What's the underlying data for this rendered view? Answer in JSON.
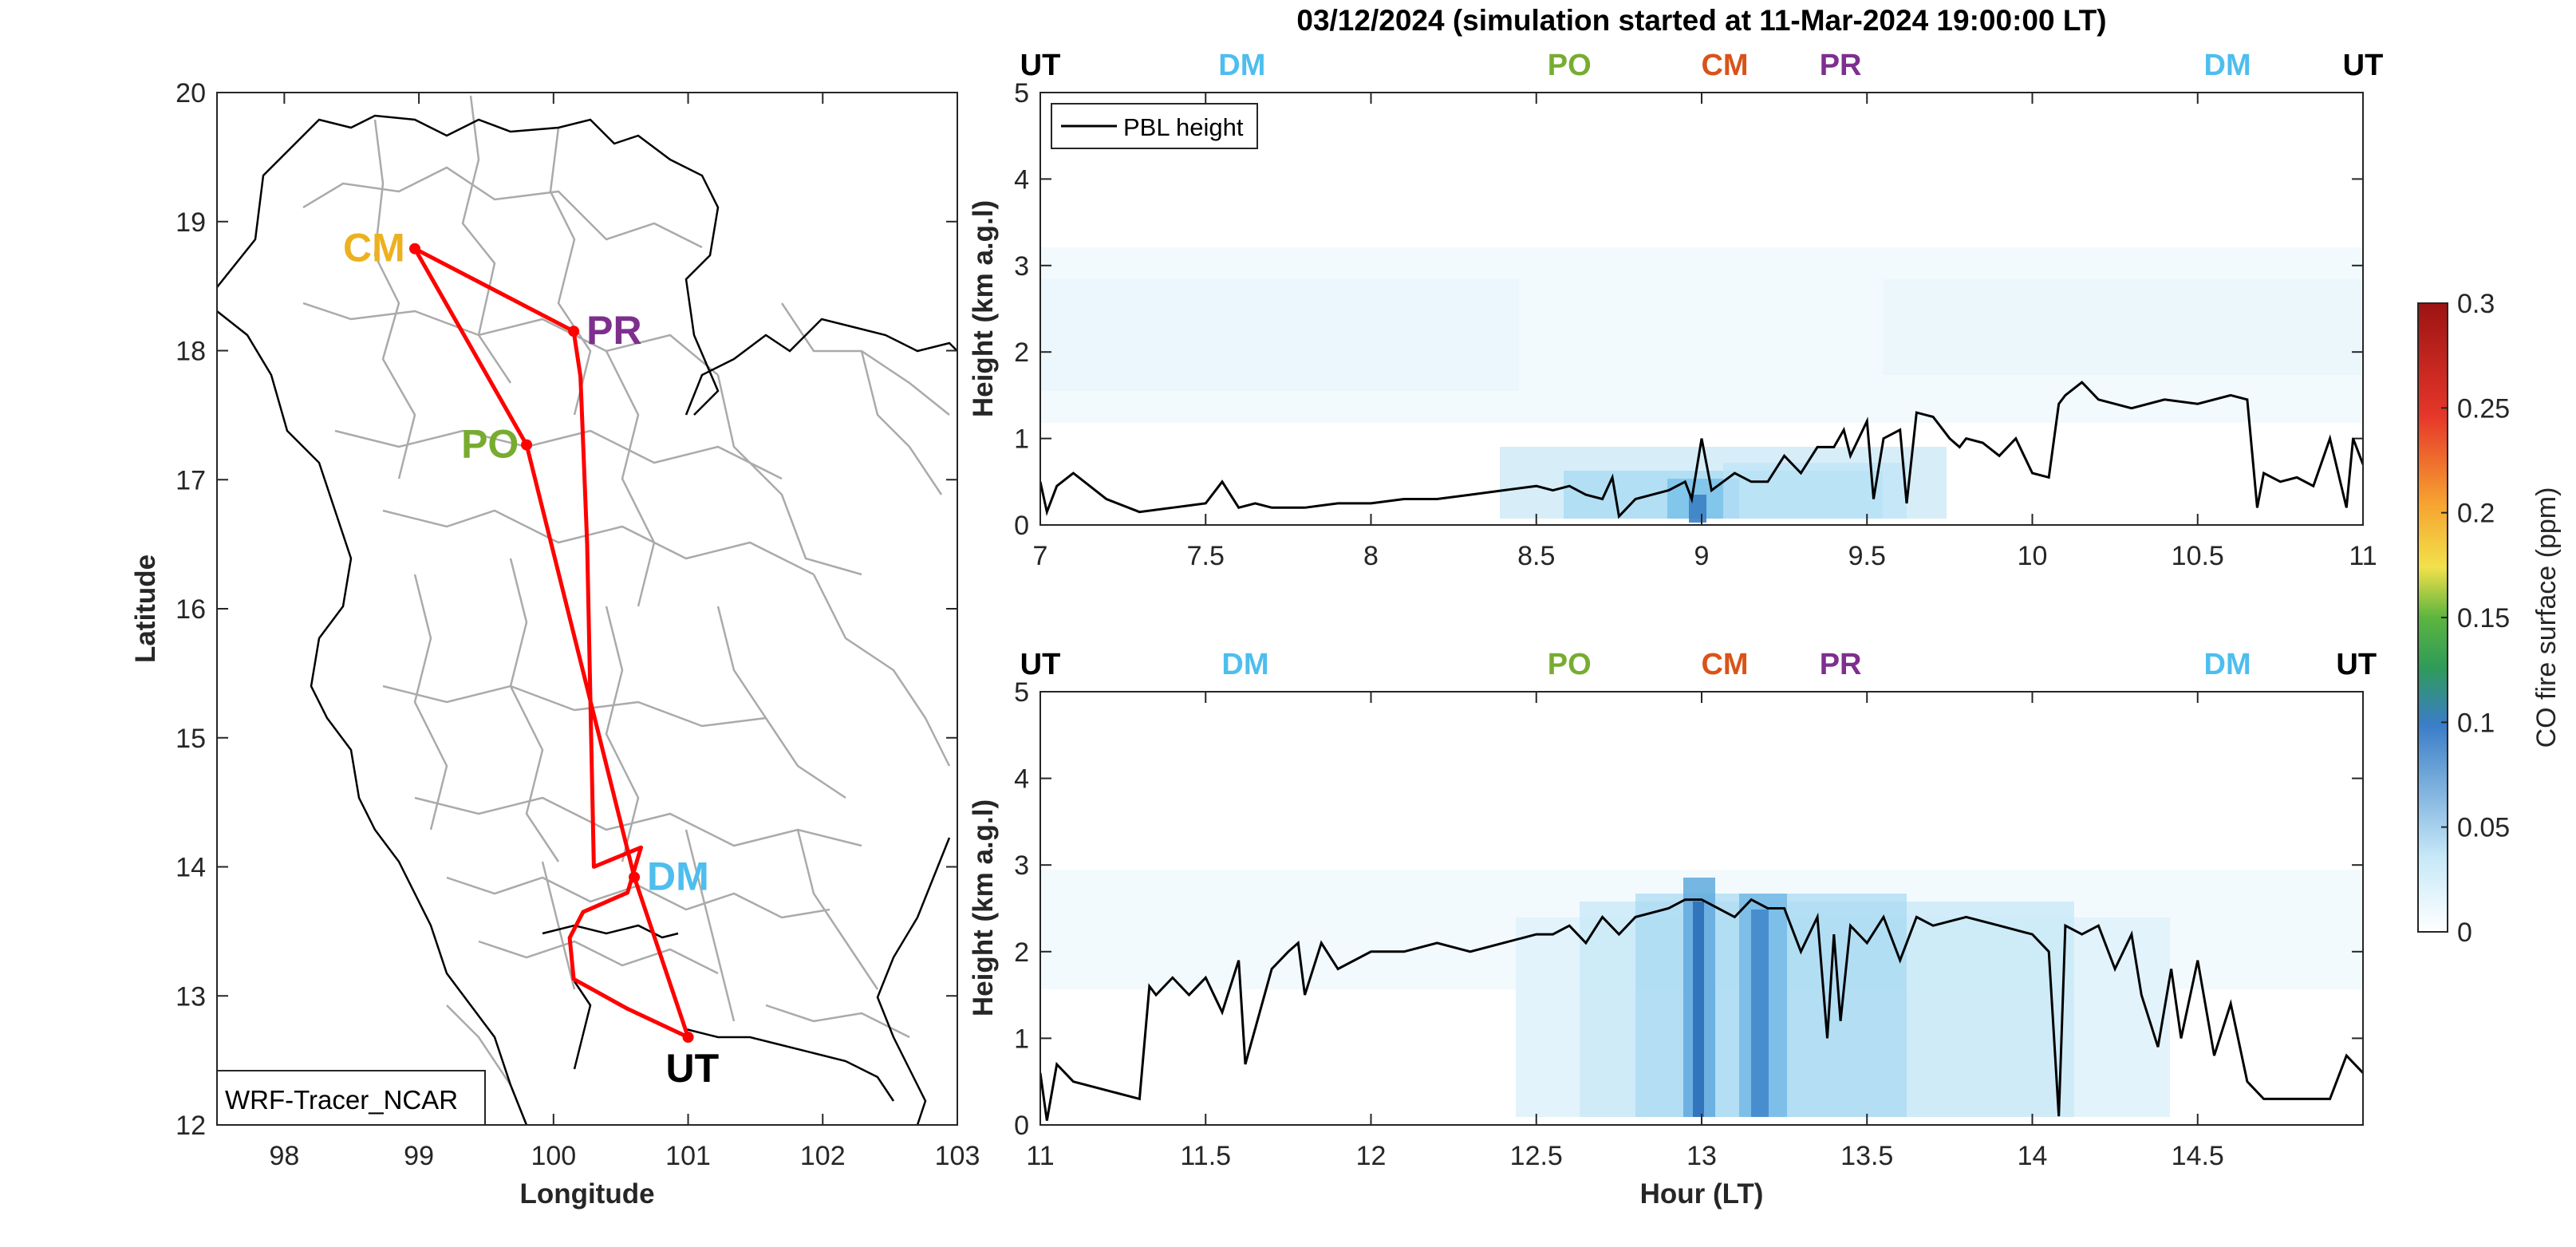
{
  "title": "03/12/2024 (simulation started at 11-Mar-2024 19:00:00 LT)",
  "colors": {
    "UT": "#000000",
    "DM": "#4DBEEE",
    "PO": "#77AC30",
    "CM": "#D95319",
    "PR": "#7E2F8E",
    "CM_map": "#EDB120",
    "track": "#FF0000",
    "pbl": "#000000",
    "border": "#000000",
    "province": "#AAAAAA"
  },
  "map": {
    "xlabel": "Longitude",
    "ylabel": "Latitude",
    "xlim": [
      97.5,
      103
    ],
    "ylim": [
      12,
      20
    ],
    "xticks": [
      98,
      99,
      100,
      101,
      102,
      103
    ],
    "yticks": [
      12,
      13,
      14,
      15,
      16,
      17,
      18,
      19,
      20
    ],
    "model_label": "WRF-Tracer_NCAR",
    "stations": [
      {
        "code": "CM",
        "lon": 98.97,
        "lat": 18.79
      },
      {
        "code": "PR",
        "lon": 100.15,
        "lat": 18.15
      },
      {
        "code": "PO",
        "lon": 99.8,
        "lat": 17.27
      },
      {
        "code": "DM",
        "lon": 100.6,
        "lat": 13.92
      },
      {
        "code": "UT",
        "lon": 101.0,
        "lat": 12.68
      }
    ],
    "track": [
      [
        101.0,
        12.68
      ],
      [
        100.6,
        13.92
      ],
      [
        99.8,
        17.27
      ],
      [
        98.97,
        18.79
      ],
      [
        100.15,
        18.15
      ],
      [
        100.2,
        17.8
      ],
      [
        100.25,
        16.5
      ],
      [
        100.3,
        14.0
      ],
      [
        100.65,
        14.15
      ],
      [
        100.55,
        13.8
      ],
      [
        100.22,
        13.65
      ],
      [
        100.12,
        13.45
      ],
      [
        100.15,
        13.13
      ],
      [
        100.55,
        12.9
      ],
      [
        101.0,
        12.68
      ]
    ]
  },
  "chart_data": [
    {
      "type": "heatmap",
      "xlim": [
        7,
        11
      ],
      "ylim": [
        0,
        5
      ],
      "xticks": [
        7,
        7.5,
        8,
        8.5,
        9,
        9.5,
        10,
        10.5,
        11
      ],
      "yticks": [
        0,
        1,
        2,
        3,
        4,
        5
      ],
      "ylabel": "Height (km a.g.l)",
      "xlabel": "",
      "legend": "PBL height",
      "legend_location": "top-left",
      "top_markers": [
        {
          "label": "UT",
          "x": 7.0
        },
        {
          "label": "DM",
          "x": 7.61
        },
        {
          "label": "PO",
          "x": 8.6
        },
        {
          "label": "CM",
          "x": 9.07
        },
        {
          "label": "PR",
          "x": 9.42
        },
        {
          "label": "DM",
          "x": 10.59
        },
        {
          "label": "UT",
          "x": 11.0
        }
      ],
      "pbl_height": {
        "x": [
          7.0,
          7.02,
          7.05,
          7.1,
          7.2,
          7.3,
          7.4,
          7.5,
          7.55,
          7.6,
          7.65,
          7.7,
          7.8,
          7.9,
          8.0,
          8.1,
          8.2,
          8.3,
          8.4,
          8.5,
          8.55,
          8.6,
          8.65,
          8.7,
          8.73,
          8.75,
          8.8,
          8.85,
          8.9,
          8.95,
          8.97,
          9.0,
          9.03,
          9.1,
          9.15,
          9.2,
          9.25,
          9.3,
          9.35,
          9.4,
          9.43,
          9.45,
          9.5,
          9.52,
          9.55,
          9.6,
          9.62,
          9.65,
          9.7,
          9.75,
          9.78,
          9.8,
          9.85,
          9.9,
          9.95,
          10.0,
          10.05,
          10.08,
          10.1,
          10.15,
          10.2,
          10.3,
          10.4,
          10.5,
          10.6,
          10.65,
          10.68,
          10.7,
          10.75,
          10.8,
          10.85,
          10.9,
          10.95,
          10.97,
          11.0
        ],
        "y": [
          0.5,
          0.15,
          0.45,
          0.6,
          0.3,
          0.15,
          0.2,
          0.25,
          0.5,
          0.2,
          0.25,
          0.2,
          0.2,
          0.25,
          0.25,
          0.3,
          0.3,
          0.35,
          0.4,
          0.45,
          0.4,
          0.45,
          0.35,
          0.3,
          0.55,
          0.1,
          0.3,
          0.35,
          0.4,
          0.5,
          0.3,
          1.0,
          0.4,
          0.6,
          0.5,
          0.5,
          0.8,
          0.6,
          0.9,
          0.9,
          1.1,
          0.8,
          1.2,
          0.3,
          1.0,
          1.1,
          0.25,
          1.3,
          1.25,
          1.0,
          0.9,
          1.0,
          0.95,
          0.8,
          1.0,
          0.6,
          0.55,
          1.4,
          1.5,
          1.65,
          1.45,
          1.35,
          1.45,
          1.4,
          1.5,
          1.45,
          0.2,
          0.6,
          0.5,
          0.55,
          0.45,
          1.0,
          0.2,
          1.0,
          0.7
        ]
      }
    },
    {
      "type": "heatmap",
      "xlim": [
        11,
        15
      ],
      "ylim": [
        0,
        5
      ],
      "xticks": [
        11,
        11.5,
        12,
        12.5,
        13,
        13.5,
        14,
        14.5
      ],
      "yticks": [
        0,
        1,
        2,
        3,
        4,
        5
      ],
      "ylabel": "Height (km a.g.l)",
      "xlabel": "Hour (LT)",
      "top_markers": [
        {
          "label": "UT",
          "x": 11.0
        },
        {
          "label": "DM",
          "x": 11.62
        },
        {
          "label": "PO",
          "x": 12.6
        },
        {
          "label": "CM",
          "x": 13.07
        },
        {
          "label": "PR",
          "x": 13.42
        },
        {
          "label": "DM",
          "x": 14.59
        },
        {
          "label": "UT",
          "x": 14.98
        }
      ],
      "pbl_height": {
        "x": [
          11.0,
          11.02,
          11.05,
          11.1,
          11.2,
          11.3,
          11.33,
          11.35,
          11.4,
          11.45,
          11.5,
          11.55,
          11.6,
          11.62,
          11.7,
          11.75,
          11.78,
          11.8,
          11.85,
          11.9,
          12.0,
          12.1,
          12.2,
          12.3,
          12.4,
          12.5,
          12.55,
          12.6,
          12.65,
          12.7,
          12.75,
          12.8,
          12.9,
          12.95,
          13.0,
          13.05,
          13.1,
          13.15,
          13.2,
          13.25,
          13.3,
          13.35,
          13.38,
          13.4,
          13.42,
          13.45,
          13.5,
          13.55,
          13.6,
          13.65,
          13.7,
          13.8,
          13.9,
          14.0,
          14.05,
          14.08,
          14.1,
          14.15,
          14.2,
          14.25,
          14.3,
          14.33,
          14.38,
          14.42,
          14.45,
          14.5,
          14.55,
          14.6,
          14.65,
          14.7,
          14.8,
          14.9,
          14.95,
          15.0
        ],
        "y": [
          0.6,
          0.05,
          0.7,
          0.5,
          0.4,
          0.3,
          1.6,
          1.5,
          1.7,
          1.5,
          1.7,
          1.3,
          1.9,
          0.7,
          1.8,
          2.0,
          2.1,
          1.5,
          2.1,
          1.8,
          2.0,
          2.0,
          2.1,
          2.0,
          2.1,
          2.2,
          2.2,
          2.3,
          2.1,
          2.4,
          2.2,
          2.4,
          2.5,
          2.6,
          2.6,
          2.5,
          2.4,
          2.6,
          2.5,
          2.5,
          2.0,
          2.4,
          1.0,
          2.2,
          1.2,
          2.3,
          2.1,
          2.4,
          1.9,
          2.4,
          2.3,
          2.4,
          2.3,
          2.2,
          2.0,
          0.1,
          2.3,
          2.2,
          2.3,
          1.8,
          2.2,
          1.5,
          0.9,
          1.8,
          1.0,
          1.9,
          0.8,
          1.4,
          0.5,
          0.3,
          0.3,
          0.3,
          0.8,
          0.6
        ]
      }
    },
    {
      "type": "colorbar",
      "label": "CO fire surface (ppm)",
      "ticks": [
        "0",
        "0.05",
        "0.1",
        "0.15",
        "0.2",
        "0.25",
        "0.3"
      ],
      "range": [
        0,
        0.3
      ]
    }
  ]
}
